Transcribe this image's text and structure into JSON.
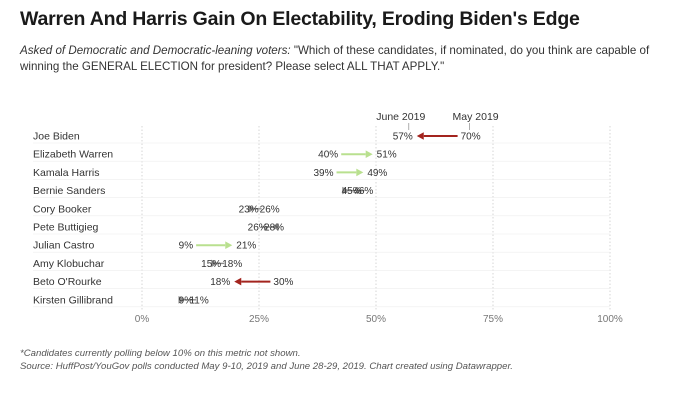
{
  "header": {
    "title": "Warren And Harris Gain On Electability, Eroding Biden's Edge",
    "subtitle_lead": "Asked of Democratic and Democratic-leaning voters:",
    "subtitle_rest": " \"Which of these candidates, if nominated, do you think are capable of winning the GENERAL ELECTION for president? Please select ALL THAT APPLY.\""
  },
  "notes": {
    "line1": "*Candidates currently polling below 10% on this metric not shown.",
    "line2": "Source: HuffPost/YouGov polls conducted May 9-10, 2019 and June 28-29, 2019. Chart created using Datawrapper."
  },
  "colors": {
    "increase": "#b9e08f",
    "decrease": "#a3241e",
    "neutral": "#8c8c8c",
    "grid": "#d6d6d6",
    "text": "#333333"
  },
  "chart_data": {
    "type": "arrow",
    "x_tick_labels": [
      "0%",
      "25%",
      "50%",
      "75%",
      "100%"
    ],
    "xlim": [
      0,
      100
    ],
    "series": [
      {
        "name": "June 2019",
        "values": [
          57,
          51,
          49,
          46,
          26,
          26,
          21,
          18,
          18,
          11
        ]
      },
      {
        "name": "May 2019",
        "values": [
          70,
          40,
          39,
          45,
          23,
          28,
          9,
          15,
          30,
          9
        ]
      }
    ],
    "rows": [
      {
        "label": "Joe Biden",
        "may": 70,
        "june": 57,
        "may_text": "70%",
        "june_text": "57%",
        "change": "decrease"
      },
      {
        "label": "Elizabeth Warren",
        "may": 40,
        "june": 51,
        "may_text": "40%",
        "june_text": "51%",
        "change": "increase"
      },
      {
        "label": "Kamala Harris",
        "may": 39,
        "june": 49,
        "may_text": "39%",
        "june_text": "49%",
        "change": "increase"
      },
      {
        "label": "Bernie Sanders",
        "may": 45,
        "june": 46,
        "may_text": "45%",
        "june_text": "46%",
        "change": "neutral"
      },
      {
        "label": "Cory Booker",
        "may": 23,
        "june": 26,
        "may_text": "23%",
        "june_text": "26%",
        "change": "neutral"
      },
      {
        "label": "Pete Buttigieg",
        "may": 28,
        "june": 26,
        "may_text": "28%",
        "june_text": "26%",
        "change": "neutral"
      },
      {
        "label": "Julian Castro",
        "may": 9,
        "june": 21,
        "may_text": "9%",
        "june_text": "21%",
        "change": "increase"
      },
      {
        "label": "Amy Klobuchar",
        "may": 15,
        "june": 18,
        "may_text": "15%",
        "june_text": "18%",
        "change": "neutral"
      },
      {
        "label": "Beto O'Rourke",
        "may": 30,
        "june": 18,
        "may_text": "30%",
        "june_text": "18%",
        "change": "decrease"
      },
      {
        "label": "Kirsten Gillibrand",
        "may": 9,
        "june": 11,
        "may_text": "9%",
        "june_text": "11%",
        "change": "neutral"
      }
    ]
  }
}
